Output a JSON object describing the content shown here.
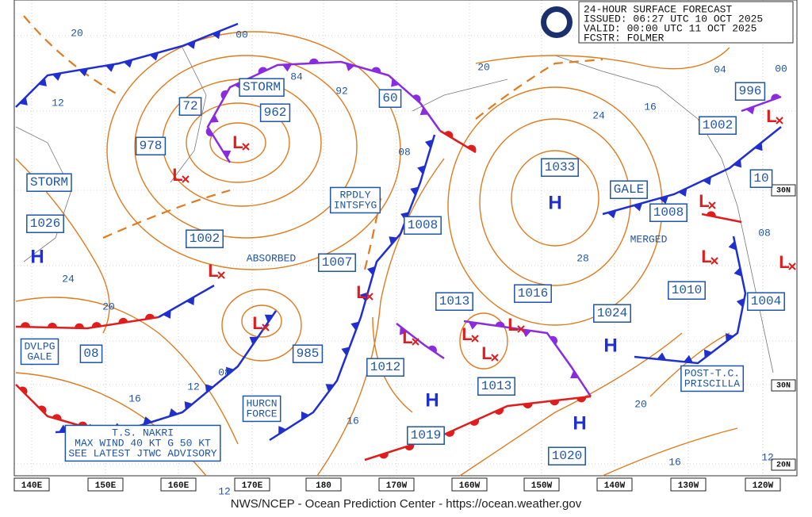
{
  "header": {
    "title": "24-HOUR SURFACE FORECAST",
    "issued": "ISSUED: 06:27 UTC 10 OCT 2025",
    "valid": "VALID:  00:00 UTC 11 OCT 2025",
    "forecaster": "FCSTR:  FOLMER"
  },
  "boxed_labels": [
    [
      "STORM"
    ],
    [
      "962"
    ],
    [
      "72"
    ],
    [
      "978"
    ],
    [
      "STORM"
    ],
    [
      "1026"
    ],
    [
      "1002"
    ],
    [
      "DVLPG",
      "GALE"
    ],
    [
      "08"
    ],
    [
      "1007"
    ],
    [
      "985"
    ],
    [
      "60"
    ],
    [
      "RPDLY",
      "INTSFYG"
    ],
    [
      "1008"
    ],
    [
      "1012"
    ],
    [
      "1013"
    ],
    [
      "1016"
    ],
    [
      "1033"
    ],
    [
      "1013"
    ],
    [
      "1019"
    ],
    [
      "1020"
    ],
    [
      "1024"
    ],
    [
      "GALE"
    ],
    [
      "1008"
    ],
    [
      "1010"
    ],
    [
      "1002"
    ],
    [
      "996"
    ],
    [
      "10"
    ],
    [
      "1004"
    ],
    [
      "POST-T.C.",
      "PRISCILLA"
    ],
    [
      "HURCN",
      "FORCE"
    ],
    [
      "T.S. NAKRI",
      "MAX WIND 40 KT G 50 KT",
      "SEE LATEST JTWC ADVISORY"
    ]
  ],
  "plain_labels": [
    "ABSORBED",
    "MERGED",
    "84",
    "92",
    "20",
    "00",
    "12",
    "24",
    "20",
    "16",
    "12",
    "08",
    "12",
    "16",
    "08",
    "20",
    "24",
    "28",
    "16",
    "04",
    "00",
    "08",
    "20",
    "16",
    "12"
  ],
  "highs": [
    "H",
    "H",
    "H",
    "H",
    "H"
  ],
  "lows": [
    "L",
    "L",
    "L",
    "L",
    "L",
    "L",
    "L",
    "L",
    "L",
    "L",
    "L",
    "L",
    "L"
  ],
  "longitudes": [
    "140E",
    "150E",
    "160E",
    "170E",
    "180",
    "170W",
    "160W",
    "150W",
    "140W",
    "130W",
    "120W"
  ],
  "latitudes": [
    "30N",
    "30N",
    "20N"
  ],
  "footer": "NWS/NCEP - Ocean Prediction Center - https://ocean.weather.gov"
}
